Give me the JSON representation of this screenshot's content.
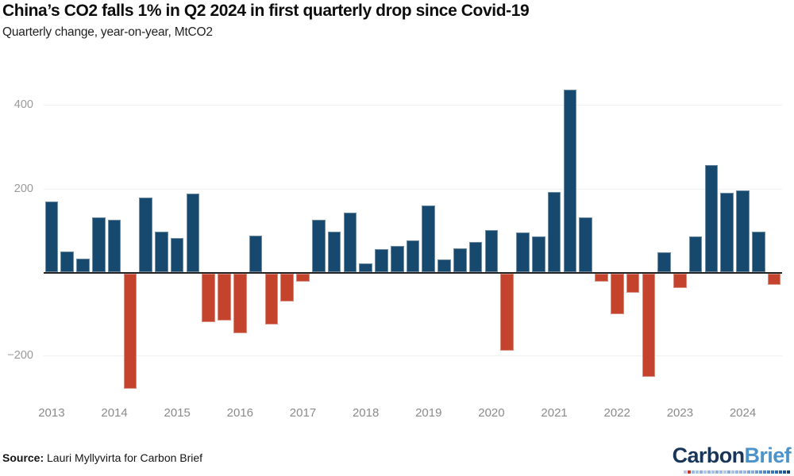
{
  "header": {
    "title": "China’s CO2 falls 1% in Q2 2024 in first quarterly drop since Covid-19",
    "subtitle": "Quarterly change, year-on-year, MtCO2"
  },
  "footer": {
    "source_label": "Source:",
    "source_text": " Lauri Myllyvirta for Carbon Brief",
    "logo_part1": "Carbon",
    "logo_part2": "Brief"
  },
  "colors": {
    "positive_bar": "#17486e",
    "negative_bar": "#c3432c",
    "zero_line": "#242424",
    "gridline": "#efefef",
    "axis_label": "#8a8a8a",
    "logo_dark": "#18365a",
    "logo_light": "#4b93ca"
  },
  "chart_data": {
    "type": "bar",
    "title": "China’s CO2 falls 1% in Q2 2024 in first quarterly drop since Covid-19",
    "subtitle": "Quarterly change, year-on-year, MtCO2",
    "ylabel": "MtCO2",
    "ylim": [
      -320,
      470
    ],
    "grid": "horizontal",
    "y_axis_ticks": [
      {
        "value": 400,
        "label": "400"
      },
      {
        "value": 200,
        "label": "200"
      },
      {
        "value": -200,
        "label": "−200"
      }
    ],
    "x_year_labels": [
      "2013",
      "2014",
      "2015",
      "2016",
      "2017",
      "2018",
      "2019",
      "2020",
      "2021",
      "2022",
      "2023",
      "2024"
    ],
    "year_label_every_n_bars": 4,
    "values": [
      170,
      50,
      33,
      132,
      126,
      -276,
      179,
      98,
      83,
      189,
      -117,
      -112,
      -144,
      88,
      -122,
      -68,
      -19,
      126,
      98,
      143,
      22,
      56,
      64,
      77,
      160,
      32,
      57,
      74,
      102,
      -185,
      95,
      86,
      193,
      437,
      131,
      -20,
      -98,
      -47,
      -248,
      48,
      -36,
      87,
      258,
      191,
      196,
      98,
      -28
    ]
  },
  "logo_pixels": [
    "#b9c6e8",
    "#c0392b",
    "#9db9e0",
    "#a9c3e8",
    "#8fb0da",
    "#b3c8ea",
    "#98b6de",
    "#a9c3e8",
    "#90b2dc",
    "#9db9e0",
    "#b3c8ea",
    "#88acd8",
    "#a9c3e8",
    "#98b6de",
    "#90b2dc",
    "#9db9e0",
    "#7ea6d4",
    "#88acd8",
    "#6f9cce",
    "#5f92c8",
    "#5089c2",
    "#4480bc",
    "#3a77b4",
    "#2f6dac",
    "#2a64a0",
    "#1f5590",
    "#16406e"
  ]
}
